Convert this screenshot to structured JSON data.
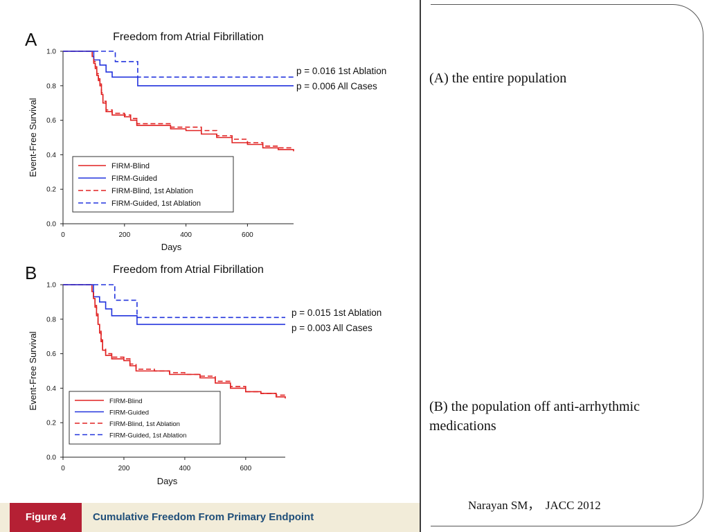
{
  "figure": {
    "label": "Figure 4",
    "caption": "Cumulative Freedom From Primary Endpoint"
  },
  "notes": {
    "panel_a": "(A) the entire population",
    "panel_b": "(B) the population off anti-arrhythmic medications",
    "citation": "Narayan SM，  JACC 2012"
  },
  "colors": {
    "firm_blind": "#e02020",
    "firm_guided": "#2233dd",
    "caption_label_bg": "#b52034",
    "caption_text": "#1f4e79"
  },
  "chart_data": [
    {
      "panel": "A",
      "type": "line",
      "title": "Freedom from Atrial Fibrillation",
      "xlabel": "Days",
      "ylabel": "Event-Free Survival",
      "xlim": [
        0,
        750
      ],
      "ylim": [
        0,
        1.0
      ],
      "xticks": [
        "0",
        "200",
        "400",
        "600"
      ],
      "yticks": [
        "0.0",
        "0.2",
        "0.4",
        "0.6",
        "0.8",
        "1.0"
      ],
      "annotations": [
        "p = 0.016 1st Ablation",
        "p = 0.006 All Cases"
      ],
      "legend": [
        "FIRM-Blind",
        "FIRM-Guided",
        "FIRM-Blind, 1st Ablation",
        "FIRM-Guided, 1st Ablation"
      ],
      "legend_position": "bottom-left",
      "series": [
        {
          "name": "FIRM-Blind",
          "style": "solid",
          "color": "firm_blind",
          "x": [
            0,
            90,
            95,
            100,
            105,
            110,
            115,
            120,
            125,
            130,
            140,
            160,
            200,
            220,
            240,
            300,
            350,
            400,
            450,
            500,
            550,
            600,
            650,
            700,
            750
          ],
          "y": [
            1.0,
            1.0,
            0.97,
            0.93,
            0.9,
            0.86,
            0.83,
            0.8,
            0.75,
            0.7,
            0.65,
            0.63,
            0.62,
            0.6,
            0.57,
            0.57,
            0.55,
            0.54,
            0.52,
            0.5,
            0.47,
            0.46,
            0.44,
            0.43,
            0.42
          ]
        },
        {
          "name": "FIRM-Guided",
          "style": "solid",
          "color": "firm_guided",
          "x": [
            0,
            90,
            100,
            120,
            140,
            160,
            243,
            300,
            750
          ],
          "y": [
            1.0,
            1.0,
            0.95,
            0.92,
            0.88,
            0.85,
            0.8,
            0.8,
            0.8
          ]
        },
        {
          "name": "FIRM-Blind, 1st Ablation",
          "style": "dashed",
          "color": "firm_blind",
          "x": [
            0,
            90,
            95,
            100,
            105,
            110,
            115,
            120,
            125,
            130,
            140,
            160,
            200,
            220,
            240,
            300,
            350,
            400,
            450,
            500,
            550,
            600,
            650,
            700,
            750
          ],
          "y": [
            1.0,
            1.0,
            0.97,
            0.94,
            0.91,
            0.87,
            0.84,
            0.81,
            0.76,
            0.71,
            0.66,
            0.64,
            0.63,
            0.61,
            0.58,
            0.58,
            0.56,
            0.56,
            0.54,
            0.51,
            0.49,
            0.47,
            0.45,
            0.44,
            0.44
          ]
        },
        {
          "name": "FIRM-Guided, 1st Ablation",
          "style": "dashed",
          "color": "firm_guided",
          "x": [
            0,
            160,
            170,
            243,
            750
          ],
          "y": [
            1.0,
            1.0,
            0.94,
            0.85,
            0.85
          ]
        }
      ]
    },
    {
      "panel": "B",
      "type": "line",
      "title": "Freedom from Atrial Fibrillation",
      "xlabel": "Days",
      "ylabel": "Event-Free Survival",
      "xlim": [
        0,
        730
      ],
      "ylim": [
        0,
        1.0
      ],
      "xticks": [
        "0",
        "200",
        "400",
        "600"
      ],
      "yticks": [
        "0.0",
        "0.2",
        "0.4",
        "0.6",
        "0.8",
        "1.0"
      ],
      "annotations": [
        "p = 0.015 1st Ablation",
        "p = 0.003 All Cases"
      ],
      "legend": [
        "FIRM-Blind",
        "FIRM-Guided",
        "FIRM-Blind, 1st Ablation",
        "FIRM-Guided, 1st Ablation"
      ],
      "legend_position": "bottom-left",
      "series": [
        {
          "name": "FIRM-Blind",
          "style": "solid",
          "color": "firm_blind",
          "x": [
            0,
            90,
            95,
            100,
            105,
            110,
            115,
            120,
            125,
            130,
            140,
            160,
            200,
            220,
            240,
            300,
            350,
            400,
            450,
            500,
            550,
            600,
            650,
            700,
            730
          ],
          "y": [
            1.0,
            1.0,
            0.96,
            0.92,
            0.87,
            0.82,
            0.77,
            0.72,
            0.67,
            0.62,
            0.59,
            0.57,
            0.56,
            0.53,
            0.5,
            0.5,
            0.48,
            0.48,
            0.46,
            0.43,
            0.4,
            0.38,
            0.37,
            0.35,
            0.34
          ]
        },
        {
          "name": "FIRM-Guided",
          "style": "solid",
          "color": "firm_guided",
          "x": [
            0,
            90,
            100,
            120,
            140,
            160,
            243,
            300,
            730
          ],
          "y": [
            1.0,
            1.0,
            0.93,
            0.9,
            0.86,
            0.82,
            0.77,
            0.77,
            0.77
          ]
        },
        {
          "name": "FIRM-Blind, 1st Ablation",
          "style": "dashed",
          "color": "firm_blind",
          "x": [
            0,
            90,
            95,
            100,
            105,
            110,
            115,
            120,
            125,
            130,
            140,
            160,
            200,
            220,
            240,
            300,
            350,
            400,
            450,
            500,
            550,
            600,
            650,
            700,
            730
          ],
          "y": [
            1.0,
            1.0,
            0.96,
            0.93,
            0.88,
            0.83,
            0.78,
            0.73,
            0.68,
            0.63,
            0.6,
            0.58,
            0.57,
            0.54,
            0.51,
            0.5,
            0.49,
            0.48,
            0.47,
            0.44,
            0.41,
            0.38,
            0.37,
            0.36,
            0.36
          ]
        },
        {
          "name": "FIRM-Guided, 1st Ablation",
          "style": "dashed",
          "color": "firm_guided",
          "x": [
            0,
            160,
            170,
            243,
            730
          ],
          "y": [
            1.0,
            1.0,
            0.91,
            0.81,
            0.81
          ]
        }
      ]
    }
  ]
}
